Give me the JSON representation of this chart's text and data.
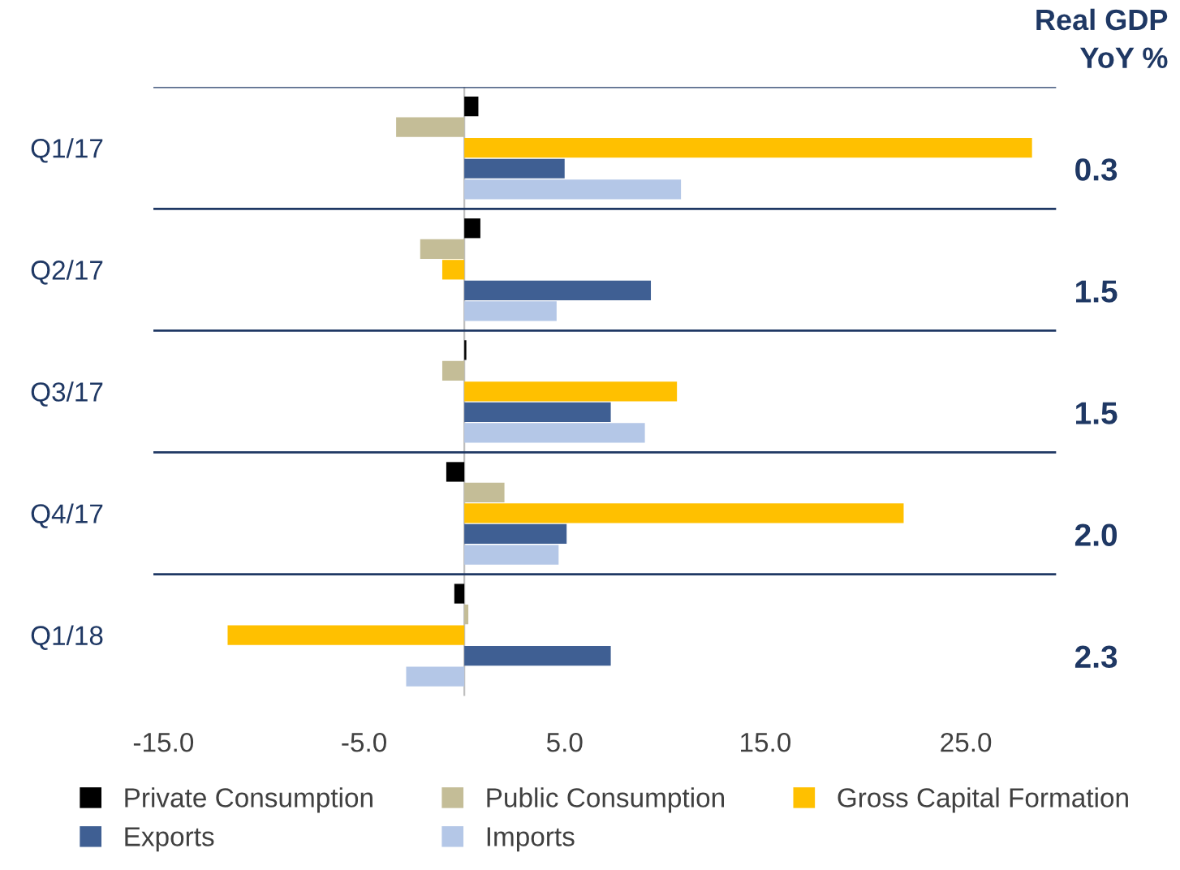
{
  "chart_data": {
    "type": "bar",
    "orientation": "horizontal",
    "categories": [
      "Q1/17",
      "Q2/17",
      "Q3/17",
      "Q4/17",
      "Q1/18"
    ],
    "series": [
      {
        "name": "Private Consumption",
        "color": "#000000",
        "values": [
          0.7,
          0.8,
          0.1,
          -0.9,
          -0.5
        ]
      },
      {
        "name": "Public Consumption",
        "color": "#c4bd97",
        "values": [
          -3.4,
          -2.2,
          -1.1,
          2.0,
          0.2
        ]
      },
      {
        "name": "Gross Capital Formation",
        "color": "#ffc000",
        "values": [
          28.3,
          -1.1,
          10.6,
          21.9,
          -11.8
        ]
      },
      {
        "name": "Exports",
        "color": "#3f5f93",
        "values": [
          5.0,
          9.3,
          7.3,
          5.1,
          7.3
        ]
      },
      {
        "name": "Imports",
        "color": "#b4c7e7",
        "values": [
          10.8,
          4.6,
          9.0,
          4.7,
          -2.9
        ]
      }
    ],
    "xlim": [
      -15.5,
      29.5
    ],
    "xticks": [
      {
        "value": -15,
        "label": "-15.0"
      },
      {
        "value": -5,
        "label": "-5.0"
      },
      {
        "value": 5,
        "label": "5.0"
      },
      {
        "value": 15,
        "label": "15.0"
      },
      {
        "value": 25,
        "label": "25.0"
      }
    ],
    "tick_labels": "x",
    "grid": "y",
    "ref_lines": [
      {
        "axis": "x",
        "value": 0,
        "color": "#bfbfbf"
      }
    ],
    "legend": "bottom",
    "annotations": [
      "Real GDP\nYoY %",
      "0.3",
      "1.5",
      "1.5",
      "2.0",
      "2.3"
    ]
  }
}
